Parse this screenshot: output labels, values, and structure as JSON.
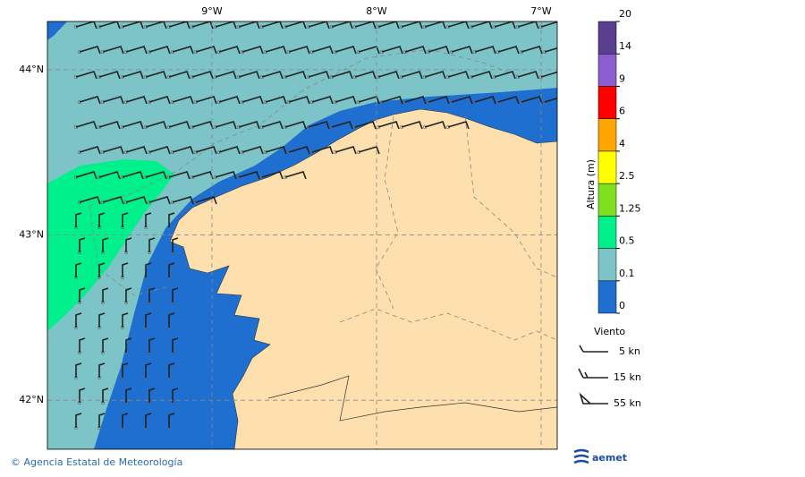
{
  "map": {
    "lonlim": [
      -10,
      -6.902
    ],
    "latlim": [
      41.703,
      44.292
    ],
    "lon_ticks": [
      {
        "value": -9,
        "label": "9°W"
      },
      {
        "value": -8,
        "label": "8°W"
      },
      {
        "value": -7,
        "label": "7°W"
      }
    ],
    "lat_ticks": [
      {
        "value": 44,
        "label": "44°N"
      },
      {
        "value": 43,
        "label": "43°N"
      },
      {
        "value": 42,
        "label": "42°N"
      }
    ]
  },
  "colorbar": {
    "title": "Altura (m)",
    "levels": [
      0,
      0.1,
      0.5,
      1.25,
      2.5,
      4,
      6,
      9,
      14,
      20
    ],
    "colors": [
      "#1f6fd0",
      "#7cc4c8",
      "#00f08c",
      "#7fe01e",
      "#ffff00",
      "#ffa500",
      "#ff0000",
      "#8a5ed0",
      "#5a3e90"
    ]
  },
  "legend": {
    "title": "Viento",
    "items": [
      "5 kn",
      "15 kn",
      "55 kn"
    ]
  },
  "footer": {
    "credit": "© Agencia Estatal de Meteorología",
    "logo": "aemet"
  }
}
